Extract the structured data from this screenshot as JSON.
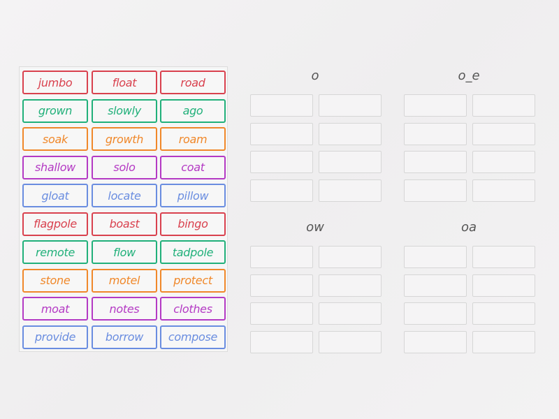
{
  "colors": {
    "red": "#d9414e",
    "green": "#21b07a",
    "orange": "#f0882a",
    "purple": "#b43ac4",
    "blue": "#6a8de0"
  },
  "cards": [
    {
      "label": "jumbo",
      "color": "red"
    },
    {
      "label": "float",
      "color": "red"
    },
    {
      "label": "road",
      "color": "red"
    },
    {
      "label": "grown",
      "color": "green"
    },
    {
      "label": "slowly",
      "color": "green"
    },
    {
      "label": "ago",
      "color": "green"
    },
    {
      "label": "soak",
      "color": "orange"
    },
    {
      "label": "growth",
      "color": "orange"
    },
    {
      "label": "roam",
      "color": "orange"
    },
    {
      "label": "shallow",
      "color": "purple"
    },
    {
      "label": "solo",
      "color": "purple"
    },
    {
      "label": "coat",
      "color": "purple"
    },
    {
      "label": "gloat",
      "color": "blue"
    },
    {
      "label": "locate",
      "color": "blue"
    },
    {
      "label": "pillow",
      "color": "blue"
    },
    {
      "label": "flagpole",
      "color": "red"
    },
    {
      "label": "boast",
      "color": "red"
    },
    {
      "label": "bingo",
      "color": "red"
    },
    {
      "label": "remote",
      "color": "green"
    },
    {
      "label": "flow",
      "color": "green"
    },
    {
      "label": "tadpole",
      "color": "green"
    },
    {
      "label": "stone",
      "color": "orange"
    },
    {
      "label": "motel",
      "color": "orange"
    },
    {
      "label": "protect",
      "color": "orange"
    },
    {
      "label": "moat",
      "color": "purple"
    },
    {
      "label": "notes",
      "color": "purple"
    },
    {
      "label": "clothes",
      "color": "purple"
    },
    {
      "label": "provide",
      "color": "blue"
    },
    {
      "label": "borrow",
      "color": "blue"
    },
    {
      "label": "compose",
      "color": "blue"
    }
  ],
  "groups": [
    {
      "title": "o",
      "slots": 8
    },
    {
      "title": "o_e",
      "slots": 8
    },
    {
      "title": "ow",
      "slots": 8
    },
    {
      "title": "oa",
      "slots": 8
    }
  ]
}
